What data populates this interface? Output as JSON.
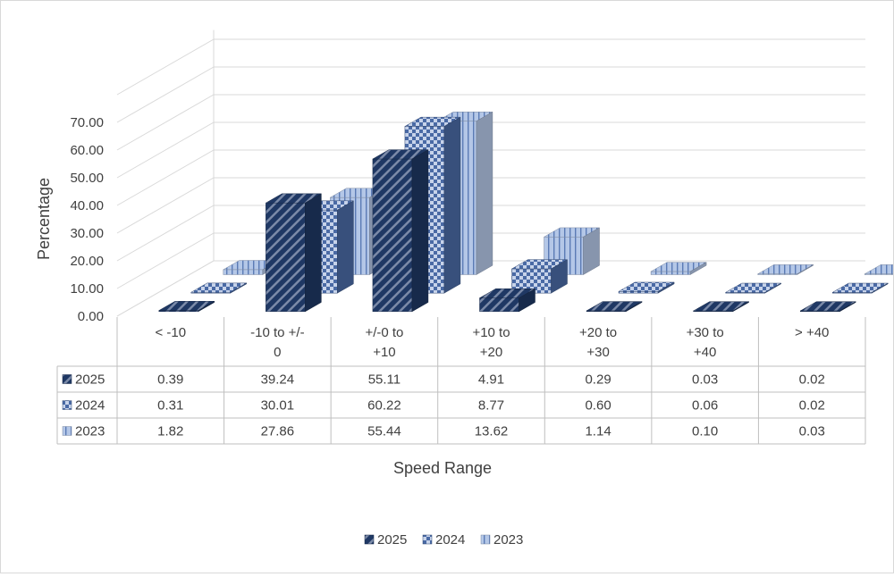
{
  "chart_data": {
    "type": "bar",
    "title": "",
    "xlabel": "Speed Range",
    "ylabel": "Percentage",
    "ylim": [
      0,
      70
    ],
    "yticks": [
      "0.00",
      "10.00",
      "20.00",
      "30.00",
      "40.00",
      "50.00",
      "60.00",
      "70.00"
    ],
    "categories": [
      "< -10",
      "-10 to +/-0",
      "+/-0 to +10",
      "+10 to +20",
      "+20 to +30",
      "+30 to +40",
      "> +40"
    ],
    "category_lines": [
      [
        "< -10"
      ],
      [
        "-10 to +/-",
        "0"
      ],
      [
        "+/-0 to",
        "+10"
      ],
      [
        "+10 to",
        "+20"
      ],
      [
        "+20 to",
        "+30"
      ],
      [
        "+30 to",
        "+40"
      ],
      [
        "> +40"
      ]
    ],
    "series": [
      {
        "name": "2025",
        "values": [
          0.39,
          39.24,
          55.11,
          4.91,
          0.29,
          0.03,
          0.02
        ],
        "labels": [
          "0.39",
          "39.24",
          "55.11",
          "4.91",
          "0.29",
          "0.03",
          "0.02"
        ],
        "color": "#1f3864"
      },
      {
        "name": "2024",
        "values": [
          0.31,
          30.01,
          60.22,
          8.77,
          0.6,
          0.06,
          0.02
        ],
        "labels": [
          "0.31",
          "30.01",
          "60.22",
          "8.77",
          "0.60",
          "0.06",
          "0.02"
        ],
        "color": "#4a6aa5"
      },
      {
        "name": "2023",
        "values": [
          1.82,
          27.86,
          55.44,
          13.62,
          1.14,
          0.1,
          0.03
        ],
        "labels": [
          "1.82",
          "27.86",
          "55.44",
          "13.62",
          "1.14",
          "0.10",
          "0.03"
        ],
        "color": "#b4c7e7"
      }
    ],
    "data_table": true,
    "legend_position": "bottom",
    "grid": true
  }
}
